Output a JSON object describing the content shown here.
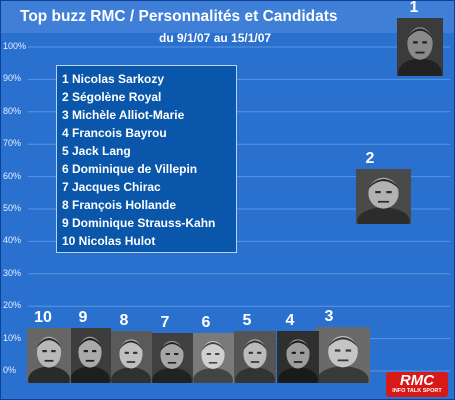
{
  "title": "Top buzz RMC / Personnalités et Candidats",
  "subtitle": "du 9/1/07 au 15/1/07",
  "chart_data": {
    "type": "scatter",
    "title": "Top buzz RMC / Personnalités et Candidats",
    "subtitle": "du 9/1/07 au 15/1/07",
    "ylim": [
      0,
      100
    ],
    "yticks": [
      "0%",
      "10%",
      "20%",
      "30%",
      "40%",
      "50%",
      "60%",
      "70%",
      "80%",
      "90%",
      "100%"
    ],
    "grid": true,
    "legend_position": "top-left",
    "points": [
      {
        "rank": "1",
        "name": "Nicolas Sarkozy",
        "value": 100
      },
      {
        "rank": "2",
        "name": "Ségolène Royal",
        "value": 54
      },
      {
        "rank": "3",
        "name": "Michèle Alliot-Marie",
        "value": 6
      },
      {
        "rank": "4",
        "name": "Francois Bayrou",
        "value": 5
      },
      {
        "rank": "5",
        "name": "Jack Lang",
        "value": 5
      },
      {
        "rank": "6",
        "name": "Dominique de Villepin",
        "value": 4
      },
      {
        "rank": "7",
        "name": "Jacques Chirac",
        "value": 3
      },
      {
        "rank": "8",
        "name": "François Hollande",
        "value": 3
      },
      {
        "rank": "9",
        "name": "Dominique Strauss-Kahn",
        "value": 3
      },
      {
        "rank": "10",
        "name": "Nicolas Hulot",
        "value": 3
      }
    ]
  },
  "legend_items": [
    "1 Nicolas Sarkozy",
    "2 Ségolène Royal",
    "3 Michèle Alliot-Marie",
    "4 Francois Bayrou",
    "5 Jack Lang",
    "6 Dominique de Villepin",
    "7 Jacques Chirac",
    "8 François Hollande",
    "9 Dominique Strauss-Kahn",
    "10 Nicolas Hulot"
  ],
  "colors": {
    "background": "#2a70cf",
    "legend_bg": "#0a56aa",
    "text": "#ffffff",
    "logo": "#d91818"
  },
  "logo": {
    "brand": "RMC",
    "tagline": "INFO TALK SPORT"
  }
}
